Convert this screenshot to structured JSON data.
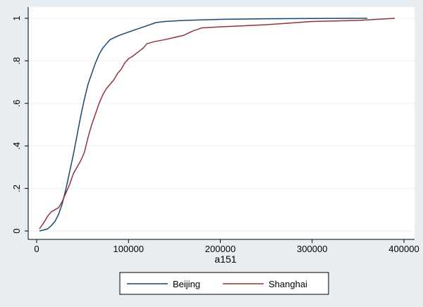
{
  "chart_data": {
    "type": "line",
    "title": "",
    "xlabel": "a151",
    "ylabel": "",
    "xlim": [
      0,
      400000
    ],
    "ylim": [
      0,
      1
    ],
    "x_ticks": [
      {
        "value": 0,
        "label": "0"
      },
      {
        "value": 100000,
        "label": "100000"
      },
      {
        "value": 200000,
        "label": "200000"
      },
      {
        "value": 300000,
        "label": "300000"
      },
      {
        "value": 400000,
        "label": "400000"
      }
    ],
    "y_ticks": [
      {
        "value": 0,
        "label": "0"
      },
      {
        "value": 0.2,
        "label": ".2"
      },
      {
        "value": 0.4,
        "label": ".4"
      },
      {
        "value": 0.6,
        "label": ".6"
      },
      {
        "value": 0.8,
        "label": ".8"
      },
      {
        "value": 1,
        "label": "1"
      }
    ],
    "grid": "horizontal",
    "legend_position": "bottom",
    "series": [
      {
        "name": "Beijing",
        "color": "#1a476f",
        "points": [
          [
            3000,
            0.0
          ],
          [
            8000,
            0.005
          ],
          [
            12000,
            0.01
          ],
          [
            16000,
            0.025
          ],
          [
            20000,
            0.045
          ],
          [
            24000,
            0.08
          ],
          [
            28000,
            0.13
          ],
          [
            32000,
            0.2
          ],
          [
            36000,
            0.28
          ],
          [
            40000,
            0.36
          ],
          [
            44000,
            0.45
          ],
          [
            48000,
            0.54
          ],
          [
            52000,
            0.62
          ],
          [
            56000,
            0.69
          ],
          [
            60000,
            0.74
          ],
          [
            64000,
            0.79
          ],
          [
            68000,
            0.83
          ],
          [
            72000,
            0.86
          ],
          [
            76000,
            0.88
          ],
          [
            80000,
            0.9
          ],
          [
            85000,
            0.91
          ],
          [
            90000,
            0.92
          ],
          [
            100000,
            0.935
          ],
          [
            110000,
            0.95
          ],
          [
            120000,
            0.965
          ],
          [
            130000,
            0.98
          ],
          [
            140000,
            0.985
          ],
          [
            160000,
            0.99
          ],
          [
            200000,
            0.995
          ],
          [
            250000,
            0.998
          ],
          [
            300000,
            0.999
          ],
          [
            360000,
            1.0
          ]
        ]
      },
      {
        "name": "Shanghai",
        "color": "#90353b",
        "points": [
          [
            3000,
            0.01
          ],
          [
            8000,
            0.04
          ],
          [
            12000,
            0.07
          ],
          [
            16000,
            0.09
          ],
          [
            20000,
            0.1
          ],
          [
            24000,
            0.11
          ],
          [
            28000,
            0.14
          ],
          [
            32000,
            0.18
          ],
          [
            36000,
            0.22
          ],
          [
            40000,
            0.27
          ],
          [
            44000,
            0.3
          ],
          [
            48000,
            0.33
          ],
          [
            52000,
            0.37
          ],
          [
            56000,
            0.44
          ],
          [
            60000,
            0.5
          ],
          [
            64000,
            0.55
          ],
          [
            68000,
            0.6
          ],
          [
            72000,
            0.64
          ],
          [
            76000,
            0.67
          ],
          [
            80000,
            0.69
          ],
          [
            84000,
            0.71
          ],
          [
            88000,
            0.74
          ],
          [
            92000,
            0.76
          ],
          [
            96000,
            0.79
          ],
          [
            100000,
            0.81
          ],
          [
            104000,
            0.82
          ],
          [
            110000,
            0.84
          ],
          [
            116000,
            0.86
          ],
          [
            120000,
            0.88
          ],
          [
            128000,
            0.89
          ],
          [
            140000,
            0.9
          ],
          [
            160000,
            0.92
          ],
          [
            170000,
            0.94
          ],
          [
            180000,
            0.955
          ],
          [
            200000,
            0.96
          ],
          [
            250000,
            0.97
          ],
          [
            300000,
            0.985
          ],
          [
            350000,
            0.99
          ],
          [
            390000,
            1.0
          ]
        ]
      }
    ]
  }
}
